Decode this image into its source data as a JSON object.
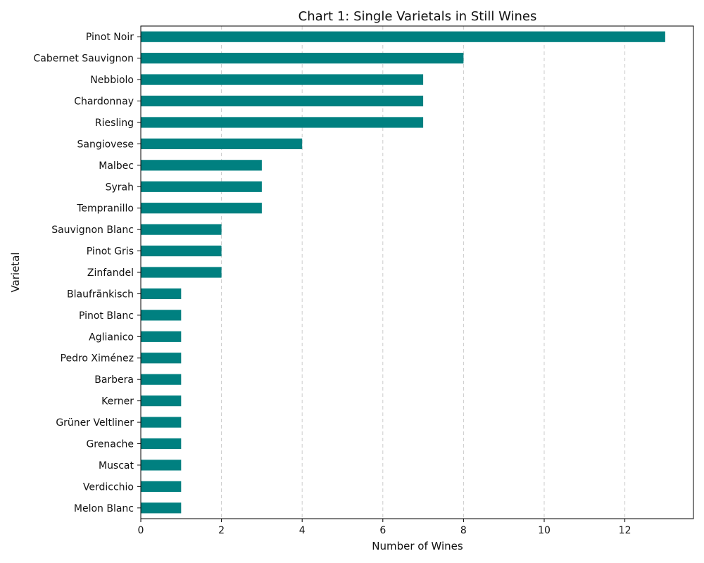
{
  "chart_data": {
    "type": "bar",
    "orientation": "horizontal",
    "title": "Chart 1: Single Varietals in Still Wines",
    "xlabel": "Number of Wines",
    "ylabel": "Varietal",
    "xlim": [
      0,
      13.7
    ],
    "xticks": [
      0,
      2,
      4,
      6,
      8,
      10,
      12
    ],
    "grid": "x, dashed",
    "bar_color": "#008080",
    "categories": [
      "Pinot Noir",
      "Cabernet Sauvignon",
      "Nebbiolo",
      "Chardonnay",
      "Riesling",
      "Sangiovese",
      "Malbec",
      "Syrah",
      "Tempranillo",
      "Sauvignon Blanc",
      "Pinot Gris",
      "Zinfandel",
      "Blaufränkisch",
      "Pinot Blanc",
      "Aglianico",
      "Pedro Ximénez",
      "Barbera",
      "Kerner",
      "Grüner Veltliner",
      "Grenache",
      "Muscat",
      "Verdicchio",
      "Melon Blanc"
    ],
    "values": [
      13,
      8,
      7,
      7,
      7,
      4,
      3,
      3,
      3,
      2,
      2,
      2,
      1,
      1,
      1,
      1,
      1,
      1,
      1,
      1,
      1,
      1,
      1
    ]
  }
}
